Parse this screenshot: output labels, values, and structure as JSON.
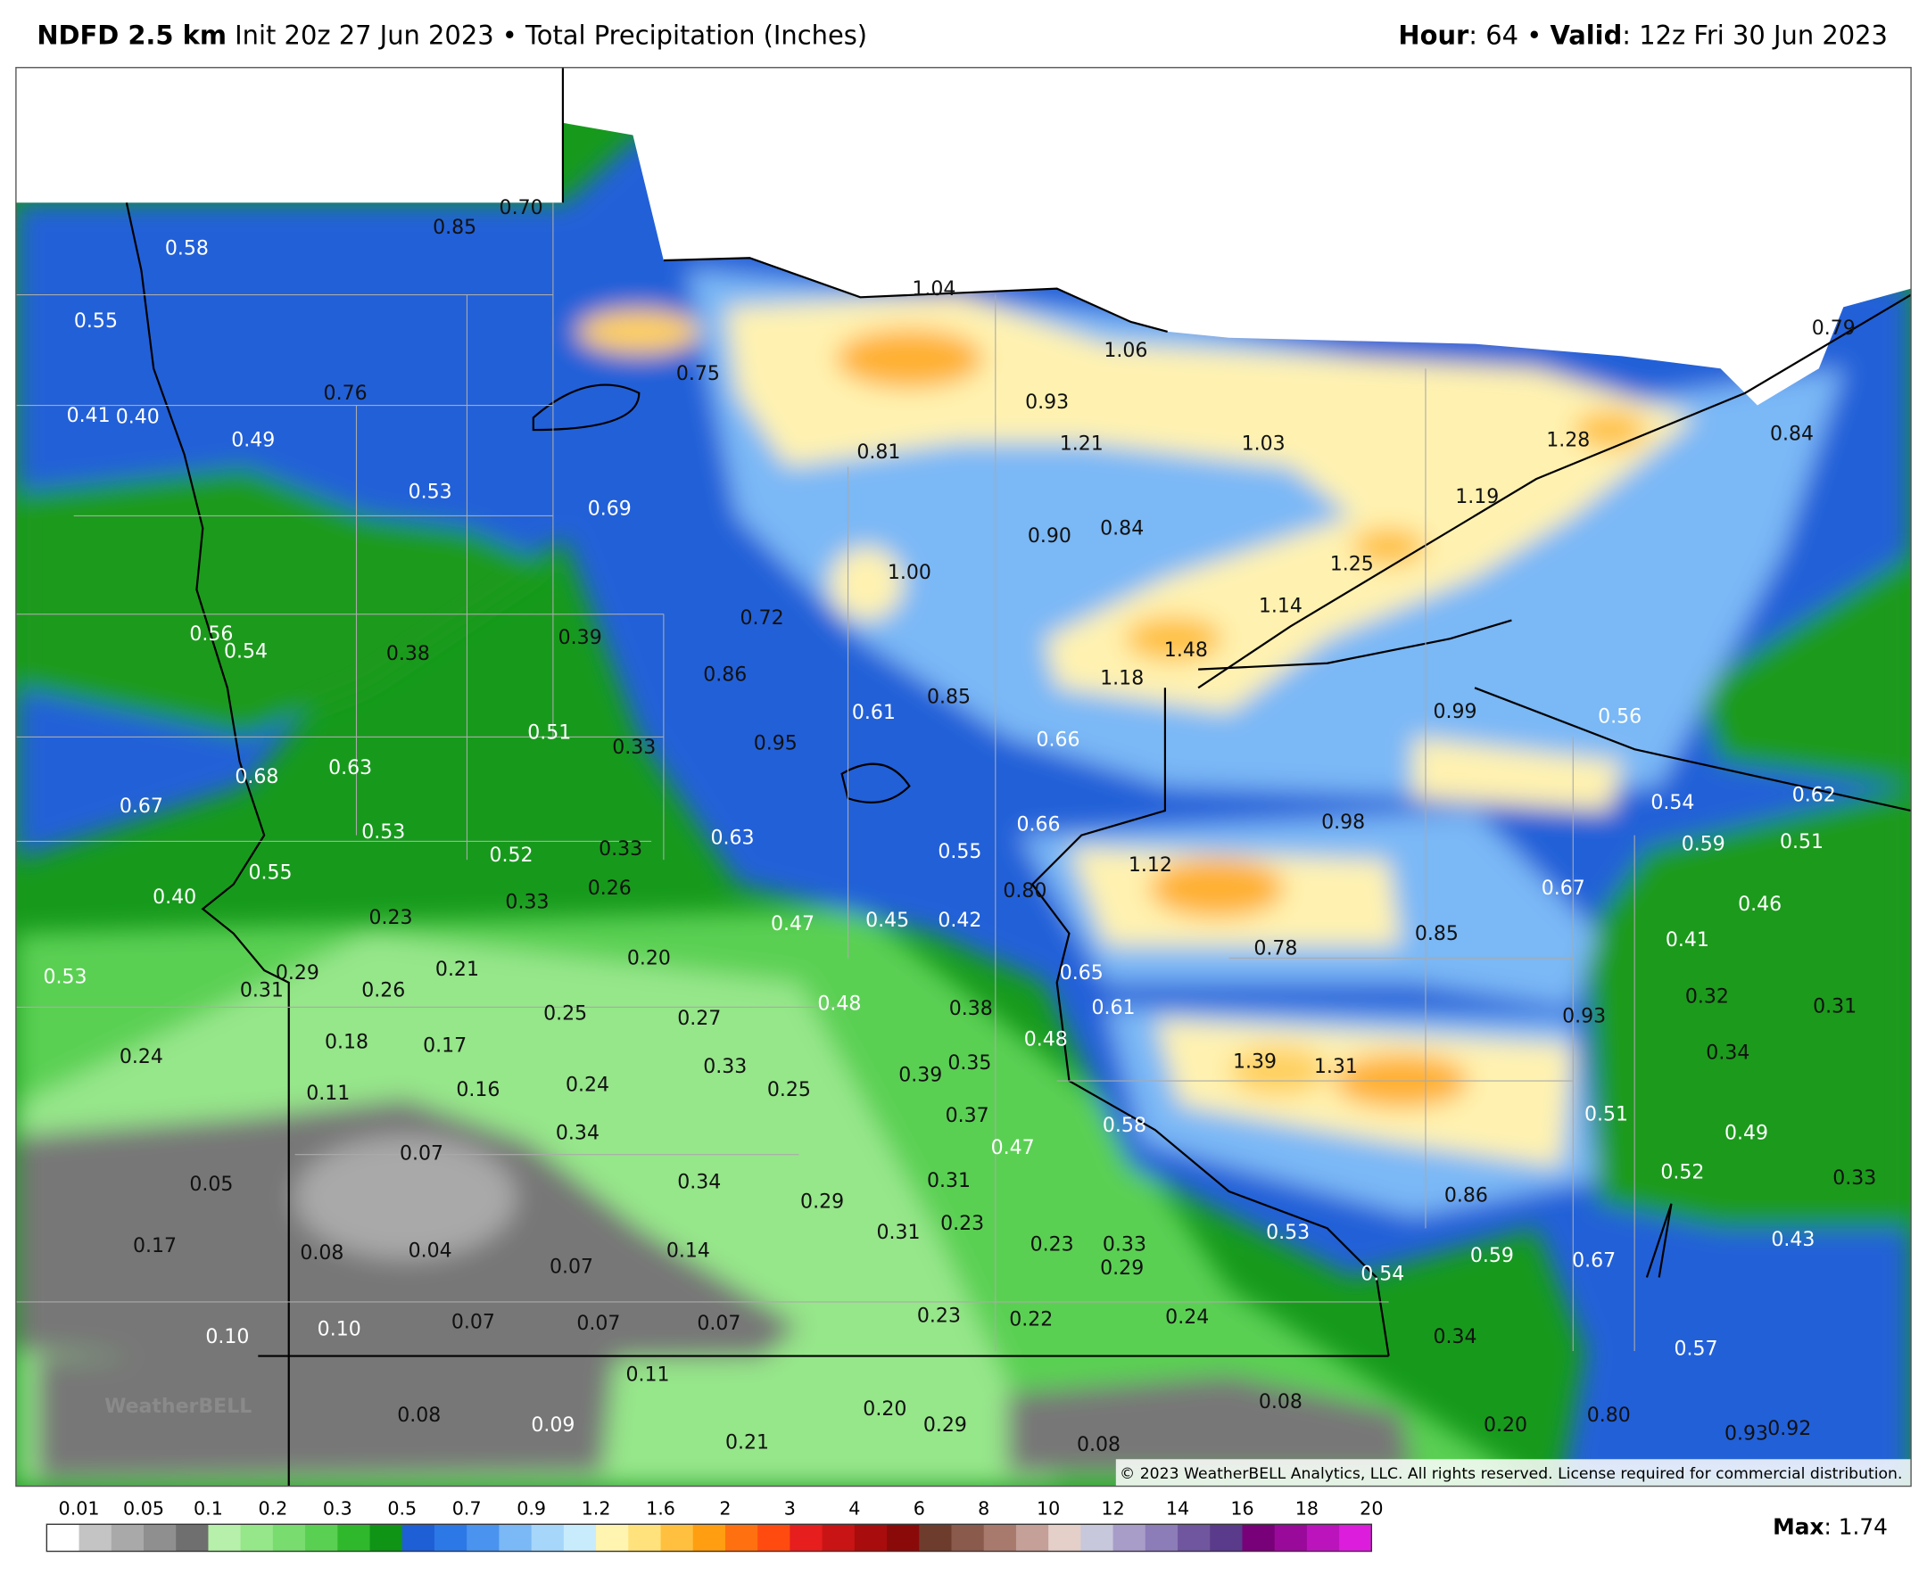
{
  "header": {
    "model": "NDFD 2.5 km",
    "subtitle": "Init 20z 27 Jun 2023 • Total Precipitation (Inches)",
    "hour_label": "Hour",
    "hour_value": ": 64 •",
    "valid_label": "Valid",
    "valid_value": ": 12z Fri 30 Jun 2023"
  },
  "map": {
    "watermark": "WeatherBELL",
    "copyright": "© 2023 WeatherBELL Analytics, LLC. All rights reserved. License required for commercial distribution.",
    "labels": [
      "0.85",
      "0.70",
      "0.58",
      "0.55",
      "1.04",
      "1.06",
      "0.79",
      "0.75",
      "0.76",
      "0.41",
      "0.40",
      "0.49",
      "0.93",
      "1.21",
      "1.03",
      "1.28",
      "0.84",
      "0.81",
      "0.53",
      "0.69",
      "1.19",
      "0.90",
      "0.84",
      "1.00",
      "1.25",
      "1.14",
      "0.72",
      "0.56",
      "0.54",
      "0.38",
      "0.39",
      "1.48",
      "0.86",
      "1.18",
      "0.85",
      "0.61",
      "0.99",
      "0.56",
      "0.51",
      "0.33",
      "0.95",
      "0.66",
      "0.68",
      "0.63",
      "0.67",
      "0.54",
      "0.62",
      "0.98",
      "0.66",
      "0.53",
      "0.63",
      "0.33",
      "0.52",
      "0.55",
      "0.59",
      "0.51",
      "1.12",
      "0.55",
      "0.40",
      "0.26",
      "0.33",
      "0.80",
      "0.67",
      "0.46",
      "0.23",
      "0.47",
      "0.45",
      "0.42",
      "0.85",
      "0.41",
      "0.20",
      "0.78",
      "0.21",
      "0.29",
      "0.53",
      "0.31",
      "0.26",
      "0.65",
      "0.32",
      "0.31",
      "0.48",
      "0.38",
      "0.61",
      "0.25",
      "0.27",
      "0.93",
      "0.24",
      "0.18",
      "0.17",
      "0.48",
      "0.34",
      "1.39",
      "1.31",
      "0.33",
      "0.35",
      "0.39",
      "0.16",
      "0.24",
      "0.25",
      "0.11",
      "0.37",
      "0.51",
      "0.58",
      "0.34",
      "0.49",
      "0.47",
      "0.07",
      "0.05",
      "0.34",
      "0.31",
      "0.29",
      "0.52",
      "0.33",
      "0.86",
      "0.23",
      "0.31",
      "0.53",
      "0.43",
      "0.17",
      "0.08",
      "0.04",
      "0.14",
      "0.23",
      "0.33",
      "0.07",
      "0.29",
      "0.59",
      "0.67",
      "0.54",
      "0.23",
      "0.22",
      "0.24",
      "0.07",
      "0.07",
      "0.07",
      "0.10",
      "0.10",
      "0.34",
      "0.57",
      "0.11",
      "0.08",
      "0.08",
      "0.20",
      "0.80",
      "0.09",
      "0.29",
      "0.20",
      "0.93",
      "0.92",
      "0.21",
      "0.08"
    ]
  },
  "legend": {
    "ticks": [
      0.01,
      0.05,
      0.1,
      0.2,
      0.3,
      0.5,
      0.7,
      0.9,
      1.2,
      1.6,
      2,
      3,
      4,
      6,
      8,
      10,
      12,
      14,
      16,
      18,
      20
    ],
    "colors": [
      "#ffffff",
      "#c4c4c4",
      "#a9a9a9",
      "#8f8f8f",
      "#6f6f6f",
      "#b6f0aa",
      "#96e68a",
      "#78dc6e",
      "#5ad052",
      "#30b82c",
      "#0f9416",
      "#1e5fd6",
      "#2c78e6",
      "#4a93ee",
      "#7ab8f6",
      "#a6d6fa",
      "#c8ecfc",
      "#fff4b0",
      "#ffe27c",
      "#ffc040",
      "#ff9e10",
      "#ff7010",
      "#ff4a10",
      "#e61e1e",
      "#c81414",
      "#a80c0c",
      "#8a0a0a",
      "#6e3c2c",
      "#8a5a4c",
      "#a87a6e",
      "#c4a098",
      "#e4d0c8",
      "#c8c8dc",
      "#a89cc8",
      "#8c7cb8",
      "#70569e",
      "#5a3a8a",
      "#780078",
      "#9a0a9a",
      "#bc14bc",
      "#dc1edc"
    ],
    "max_label": "Max",
    "max_value": ": 1.74"
  }
}
